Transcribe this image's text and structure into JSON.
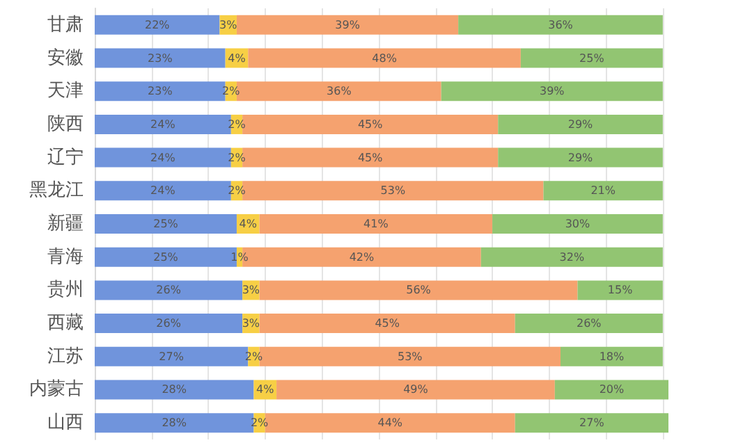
{
  "chart_data": {
    "type": "bar",
    "orientation": "horizontal",
    "stacked": true,
    "grid": "x",
    "tick_labels": "y",
    "categories": [
      "甘肃",
      "安徽",
      "天津",
      "陕西",
      "辽宁",
      "黑龙江",
      "新疆",
      "青海",
      "贵州",
      "西藏",
      "江苏",
      "内蒙古",
      "山西"
    ],
    "xlim": [
      0,
      101
    ],
    "xticks": [
      {
        "value": 0,
        "label": null
      },
      {
        "value": 10,
        "label": null
      },
      {
        "value": 20,
        "label": null
      },
      {
        "value": 30,
        "label": null
      },
      {
        "value": 40,
        "label": null
      },
      {
        "value": 50,
        "label": null
      },
      {
        "value": 60,
        "label": null
      },
      {
        "value": 70,
        "label": null
      },
      {
        "value": 80,
        "label": null
      },
      {
        "value": 90,
        "label": null
      },
      {
        "value": 100,
        "label": null
      }
    ],
    "series": [
      {
        "color": "#7094dc",
        "values": [
          22,
          23,
          23,
          24,
          24,
          24,
          25,
          25,
          26,
          26,
          27,
          28,
          28
        ],
        "value_labels": [
          "22%",
          "23%",
          "23%",
          "24%",
          "24%",
          "24%",
          "25%",
          "25%",
          "26%",
          "26%",
          "27%",
          "28%",
          "28%"
        ]
      },
      {
        "color": "#f7cf45",
        "values": [
          3,
          4,
          2,
          2,
          2,
          2,
          4,
          1,
          3,
          3,
          2,
          4,
          2
        ],
        "value_labels": [
          "3%",
          "4%",
          "2%",
          "2%",
          "2%",
          "2%",
          "4%",
          "1%",
          "3%",
          "3%",
          "2%",
          "4%",
          "2%"
        ]
      },
      {
        "color": "#f5a26f",
        "values": [
          39,
          48,
          36,
          45,
          45,
          53,
          41,
          42,
          56,
          45,
          53,
          49,
          44
        ],
        "value_labels": [
          "39%",
          "48%",
          "36%",
          "45%",
          "45%",
          "53%",
          "41%",
          "42%",
          "56%",
          "45%",
          "53%",
          "49%",
          "44%"
        ]
      },
      {
        "color": "#92c572",
        "values": [
          36,
          25,
          39,
          29,
          29,
          21,
          30,
          32,
          15,
          26,
          18,
          20,
          27
        ],
        "value_labels": [
          "36%",
          "25%",
          "39%",
          "29%",
          "29%",
          "21%",
          "30%",
          "32%",
          "15%",
          "26%",
          "18%",
          "20%",
          "27%"
        ]
      }
    ]
  }
}
